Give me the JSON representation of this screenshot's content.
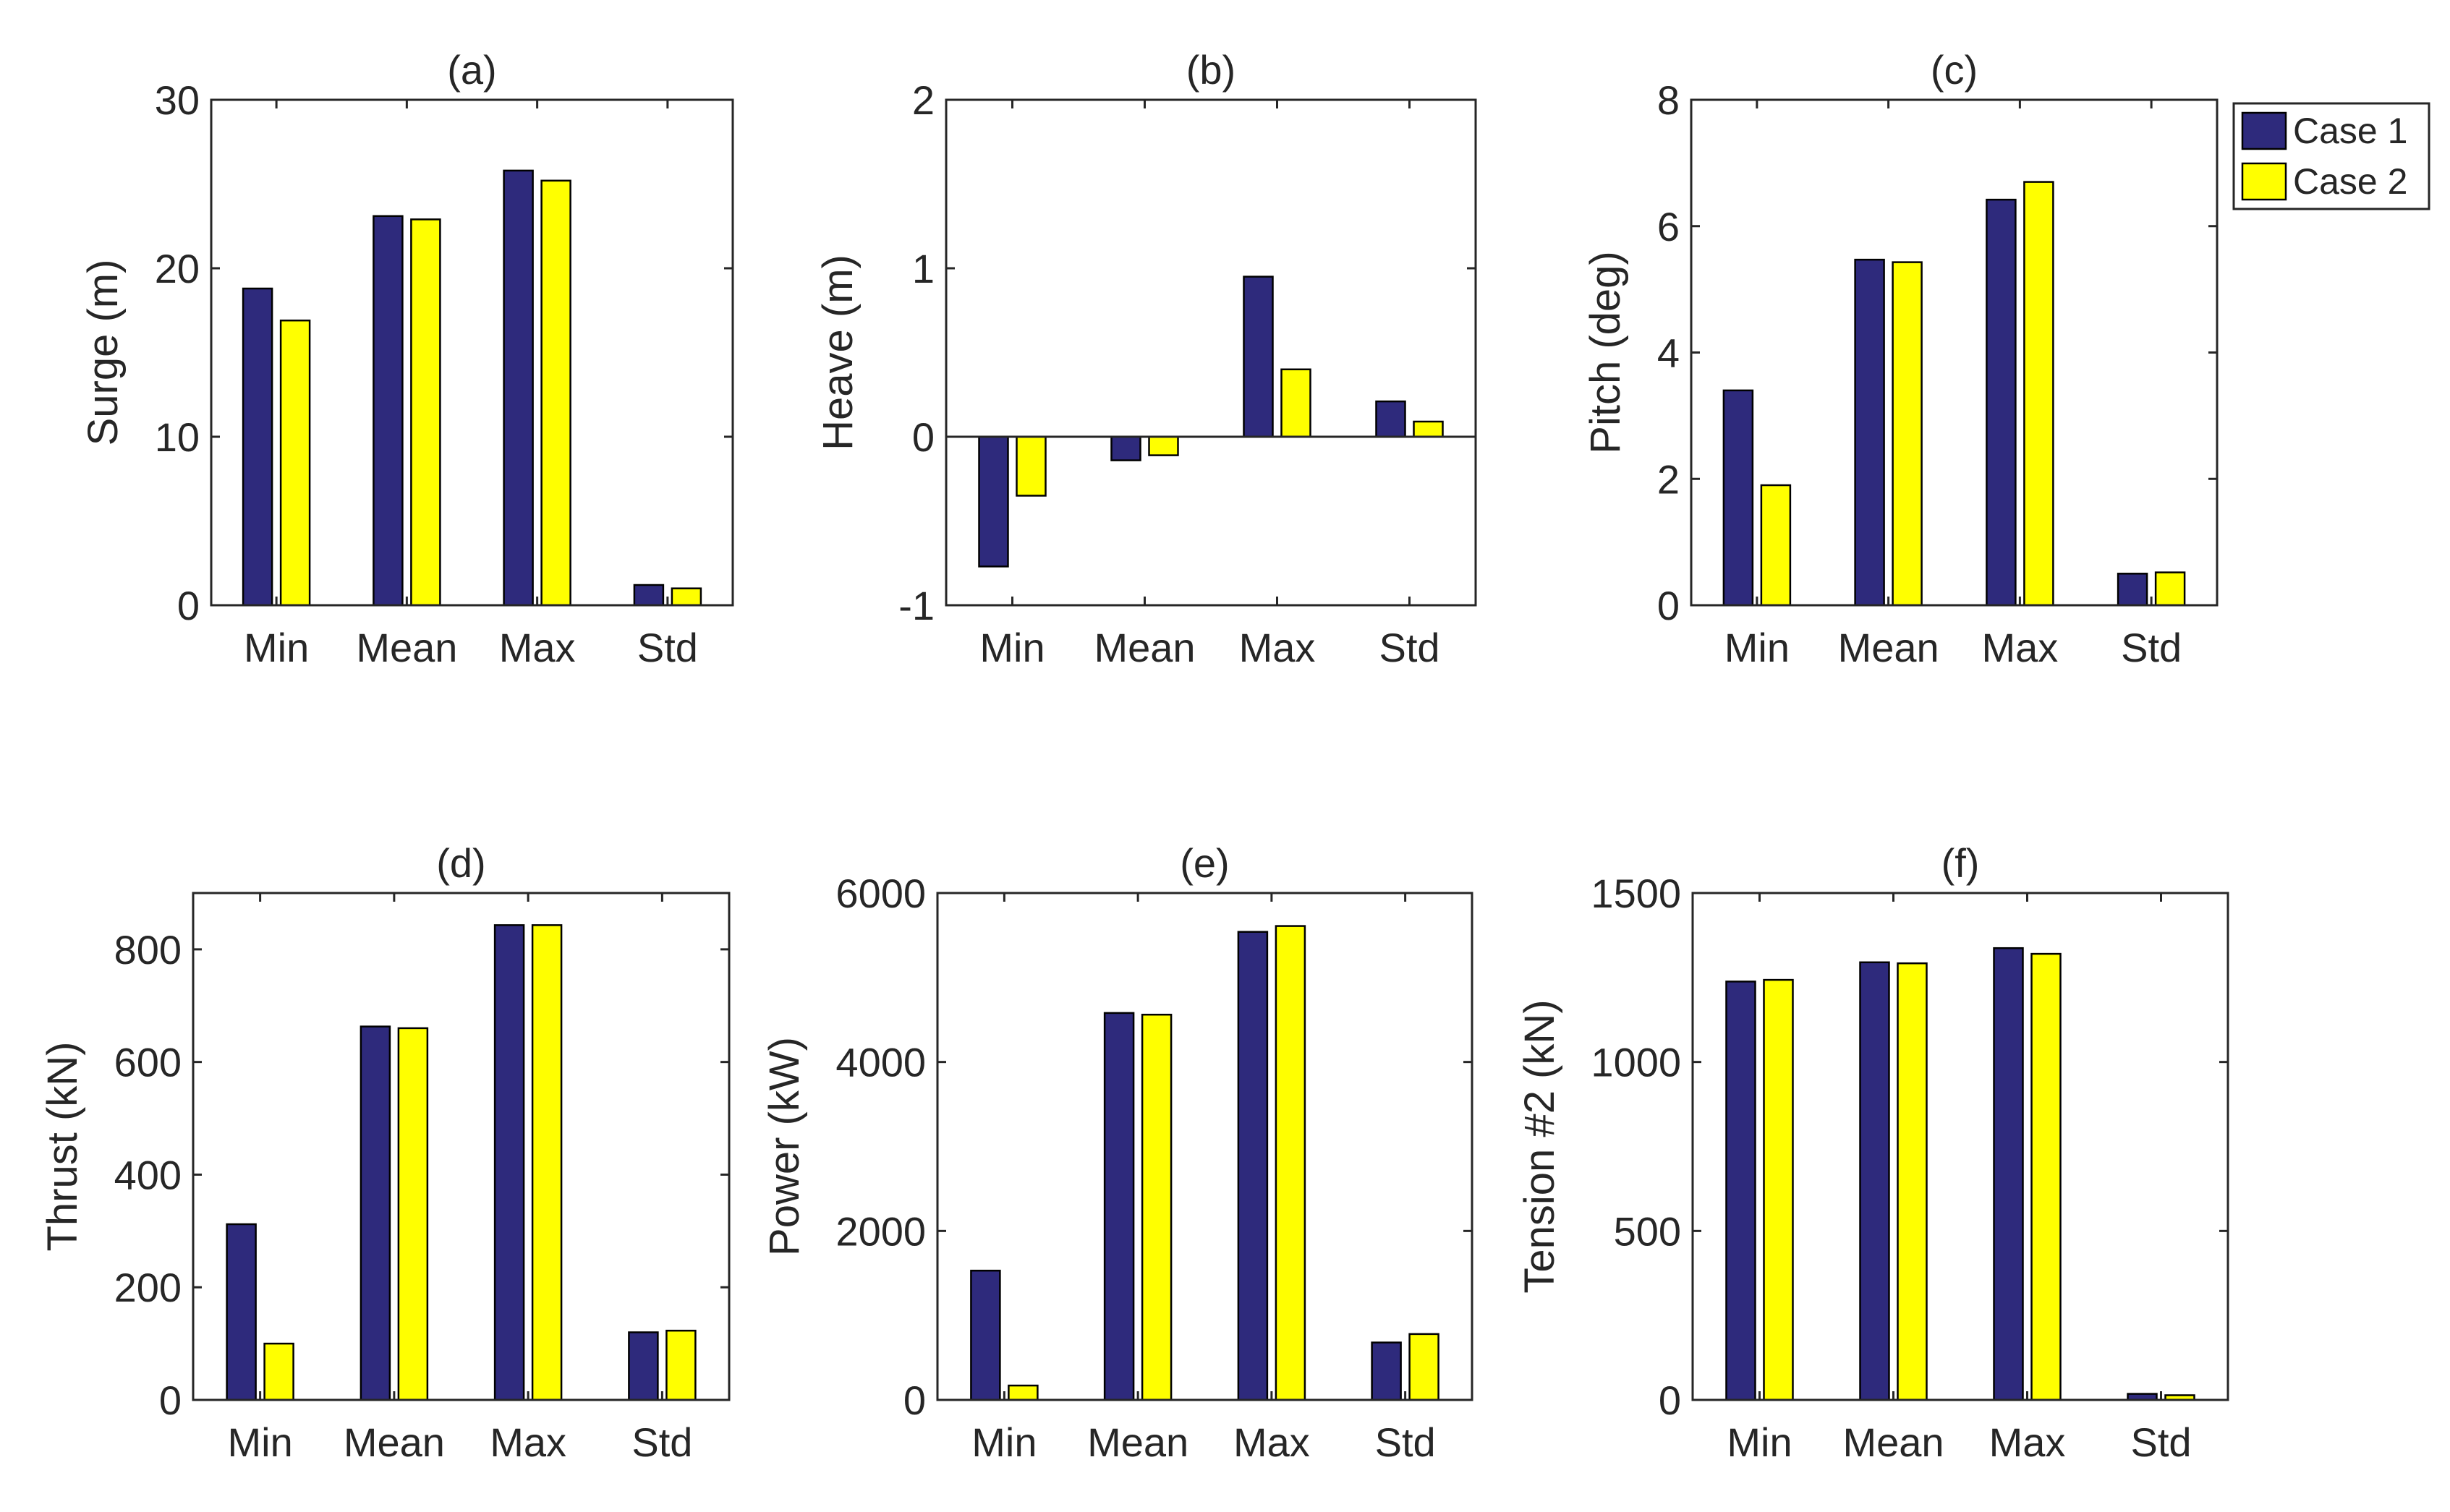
{
  "colors": {
    "case1": "#2e2a7c",
    "case2": "#ffff00",
    "axis": "#262626",
    "background": "#ffffff"
  },
  "legend": {
    "location": "top-right",
    "entries": [
      "Case 1",
      "Case 2"
    ]
  },
  "chart_data": [
    {
      "type": "bar",
      "title": "(a)",
      "xlabel": "",
      "ylabel": "Surge (m)",
      "categories": [
        "Min",
        "Mean",
        "Max",
        "Std"
      ],
      "ylim": [
        0,
        30
      ],
      "yticks": [
        0,
        10,
        20,
        30
      ],
      "series": [
        {
          "name": "Case 1",
          "values": [
            18.8,
            23.1,
            25.8,
            1.2
          ]
        },
        {
          "name": "Case 2",
          "values": [
            16.9,
            22.9,
            25.2,
            1.0
          ]
        }
      ]
    },
    {
      "type": "bar",
      "title": "(b)",
      "xlabel": "",
      "ylabel": "Heave (m)",
      "categories": [
        "Min",
        "Mean",
        "Max",
        "Std"
      ],
      "ylim": [
        -1,
        2
      ],
      "yticks": [
        -1,
        0,
        1,
        2
      ],
      "series": [
        {
          "name": "Case 1",
          "values": [
            -0.77,
            -0.14,
            0.95,
            0.21
          ]
        },
        {
          "name": "Case 2",
          "values": [
            -0.35,
            -0.11,
            0.4,
            0.09
          ]
        }
      ]
    },
    {
      "type": "bar",
      "title": "(c)",
      "xlabel": "",
      "ylabel": "Pitch (deg)",
      "categories": [
        "Min",
        "Mean",
        "Max",
        "Std"
      ],
      "ylim": [
        0,
        8
      ],
      "yticks": [
        0,
        2,
        4,
        6,
        8
      ],
      "series": [
        {
          "name": "Case 1",
          "values": [
            3.4,
            5.47,
            6.42,
            0.5
          ]
        },
        {
          "name": "Case 2",
          "values": [
            1.9,
            5.43,
            6.7,
            0.52
          ]
        }
      ]
    },
    {
      "type": "bar",
      "title": "(d)",
      "xlabel": "",
      "ylabel": "Thrust (kN)",
      "categories": [
        "Min",
        "Mean",
        "Max",
        "Std"
      ],
      "ylim": [
        0,
        900
      ],
      "yticks": [
        0,
        200,
        400,
        600,
        800
      ],
      "series": [
        {
          "name": "Case 1",
          "values": [
            312,
            663,
            843,
            120
          ]
        },
        {
          "name": "Case 2",
          "values": [
            100,
            660,
            843,
            123
          ]
        }
      ]
    },
    {
      "type": "bar",
      "title": "(e)",
      "xlabel": "",
      "ylabel": "Power (kW)",
      "categories": [
        "Min",
        "Mean",
        "Max",
        "Std"
      ],
      "ylim": [
        0,
        6000
      ],
      "yticks": [
        0,
        2000,
        4000,
        6000
      ],
      "series": [
        {
          "name": "Case 1",
          "values": [
            1530,
            4580,
            5540,
            680
          ]
        },
        {
          "name": "Case 2",
          "values": [
            170,
            4560,
            5610,
            780
          ]
        }
      ]
    },
    {
      "type": "bar",
      "title": "(f)",
      "xlabel": "",
      "ylabel": "Tension #2 (kN)",
      "categories": [
        "Min",
        "Mean",
        "Max",
        "Std"
      ],
      "ylim": [
        0,
        1500
      ],
      "yticks": [
        0,
        500,
        1000,
        1500
      ],
      "series": [
        {
          "name": "Case 1",
          "values": [
            1238,
            1295,
            1337,
            18
          ]
        },
        {
          "name": "Case 2",
          "values": [
            1243,
            1292,
            1320,
            14
          ]
        }
      ]
    }
  ]
}
